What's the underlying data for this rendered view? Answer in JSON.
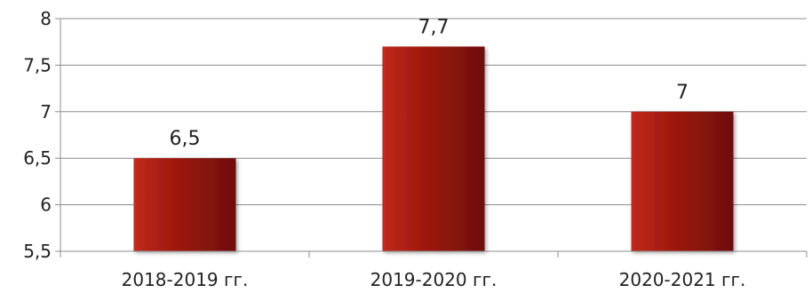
{
  "chart_data": {
    "type": "bar",
    "categories": [
      "2018-2019 гг.",
      "2019-2020 гг.",
      "2020-2021 гг."
    ],
    "values": [
      6.5,
      7.7,
      7
    ],
    "data_labels": [
      "6,5",
      "7,7",
      "7"
    ],
    "y_ticks": [
      5.5,
      6,
      6.5,
      7,
      7.5,
      8
    ],
    "y_tick_labels": [
      "5,5",
      "6",
      "6,5",
      "7",
      "7,5",
      "8"
    ],
    "ylim": [
      5.5,
      8
    ],
    "grid": true,
    "legend": "none",
    "bar_color": "#a31a10",
    "bar_highlight_color": "#c02a1c",
    "bar_shadow_color": "#6e0e08"
  }
}
